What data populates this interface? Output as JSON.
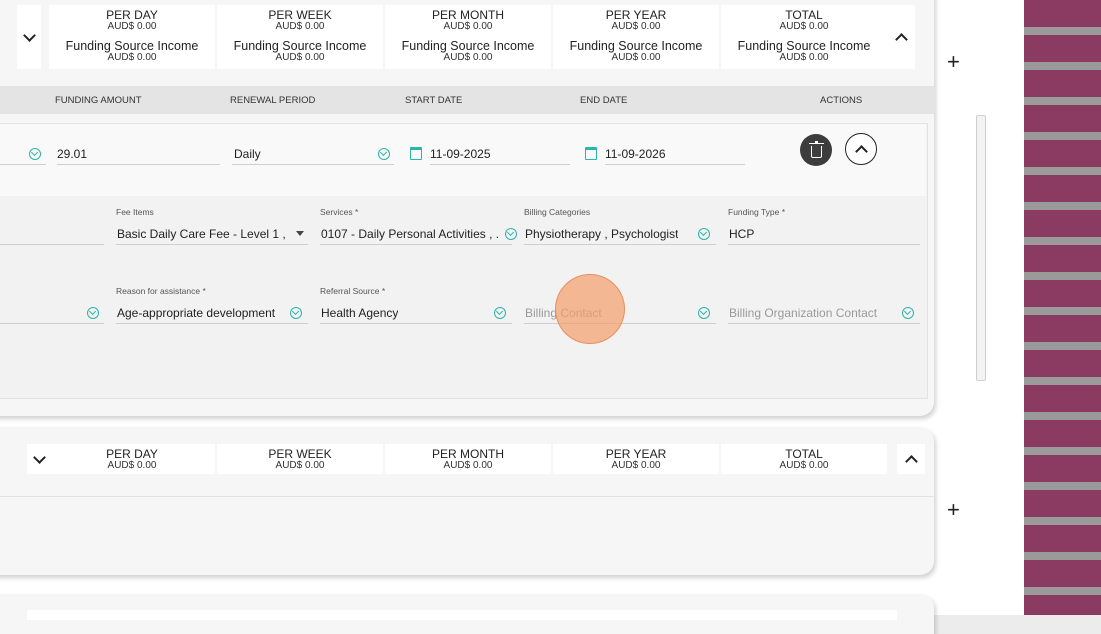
{
  "summary_top": [
    {
      "head": "PER DAY",
      "amt": "AUD$ 0.00",
      "src": "Funding Source Income",
      "src_amt": "AUD$ 0.00"
    },
    {
      "head": "PER WEEK",
      "amt": "AUD$ 0.00",
      "src": "Funding Source Income",
      "src_amt": "AUD$ 0.00"
    },
    {
      "head": "PER MONTH",
      "amt": "AUD$ 0.00",
      "src": "Funding Source Income",
      "src_amt": "AUD$ 0.00"
    },
    {
      "head": "PER YEAR",
      "amt": "AUD$ 0.00",
      "src": "Funding Source Income",
      "src_amt": "AUD$ 0.00"
    },
    {
      "head": "TOTAL",
      "amt": "AUD$ 0.00",
      "src": "Funding Source Income",
      "src_amt": "AUD$ 0.00"
    }
  ],
  "summary_bottom": [
    {
      "head": "PER DAY",
      "amt": "AUD$ 0.00"
    },
    {
      "head": "PER WEEK",
      "amt": "AUD$ 0.00"
    },
    {
      "head": "PER MONTH",
      "amt": "AUD$ 0.00"
    },
    {
      "head": "PER YEAR",
      "amt": "AUD$ 0.00"
    },
    {
      "head": "TOTAL",
      "amt": "AUD$ 0.00"
    }
  ],
  "columns": {
    "funding_amount": "FUNDING AMOUNT",
    "renewal_period": "RENEWAL PERIOD",
    "start_date": "START DATE",
    "end_date": "END DATE",
    "actions": "ACTIONS"
  },
  "row": {
    "funding_amount": "29.01",
    "renewal_period": "Daily",
    "start_date": "11-09-2025",
    "end_date": "11-09-2026"
  },
  "details": {
    "fee_items": {
      "label": "Fee Items",
      "value": "Basic Daily Care Fee - Level 1 , ..."
    },
    "services": {
      "label": "Services *",
      "value": "0107 - Daily Personal Activities , ..."
    },
    "billing_categories": {
      "label": "Billing Categories",
      "value": "Physiotherapy , Psychologist"
    },
    "funding_type": {
      "label": "Funding Type *",
      "value": "HCP"
    },
    "reason": {
      "label": "Reason for assistance *",
      "value": "Age-appropriate development"
    },
    "referral_source": {
      "label": "Referral Source *",
      "value": "Health Agency"
    },
    "billing_contact": {
      "placeholder": "Billing Contact"
    },
    "billing_org_contact": {
      "placeholder": "Billing Organization Contact"
    }
  },
  "icons": {
    "expand": "chevron-down-icon",
    "collapse": "chevron-up-icon",
    "add": "plus-icon",
    "delete": "trash-icon",
    "calendar": "calendar-icon",
    "dropdown": "circle-chevron-icon"
  },
  "colors": {
    "accent": "#2bb5a8",
    "stripe": "#8b3a62",
    "delete_button": "#3d3d3d",
    "click_indicator": "#f4a06e"
  },
  "add_symbol": "+"
}
